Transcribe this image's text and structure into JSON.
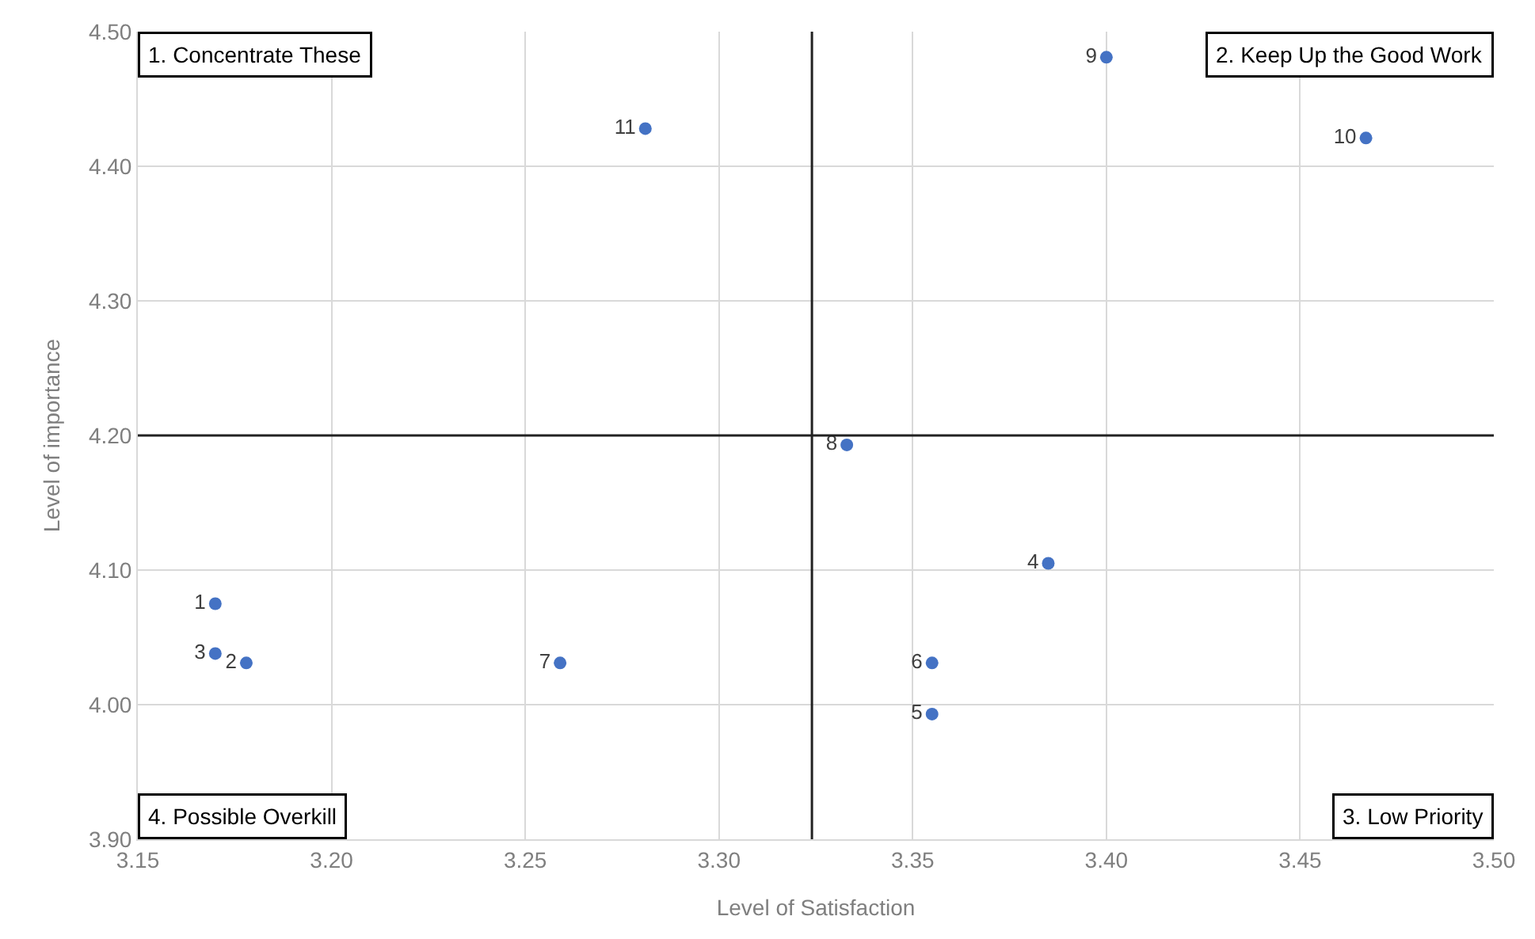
{
  "chart_data": {
    "type": "scatter",
    "xlabel": "Level of Satisfaction",
    "ylabel": "Level of importance",
    "xlim": [
      3.15,
      3.5
    ],
    "xticks": [
      {
        "value": 3.15,
        "label": "3.15"
      },
      {
        "value": 3.2,
        "label": "3.20"
      },
      {
        "value": 3.25,
        "label": "3.25"
      },
      {
        "value": 3.3,
        "label": "3.30"
      },
      {
        "value": 3.35,
        "label": "3.35"
      },
      {
        "value": 3.4,
        "label": "3.40"
      },
      {
        "value": 3.45,
        "label": "3.45"
      },
      {
        "value": 3.5,
        "label": "3.50"
      }
    ],
    "ylim": [
      3.9,
      4.5
    ],
    "yticks": [
      {
        "value": 3.9,
        "label": "3.90"
      },
      {
        "value": 4.0,
        "label": "4.00"
      },
      {
        "value": 4.1,
        "label": "4.10"
      },
      {
        "value": 4.2,
        "label": "4.20"
      },
      {
        "value": 4.3,
        "label": "4.30"
      },
      {
        "value": 4.4,
        "label": "4.40"
      },
      {
        "value": 4.5,
        "label": "4.50"
      }
    ],
    "grid": true,
    "legend": false,
    "marker": "circle",
    "series": [
      {
        "name": "1",
        "color": "#4472c4",
        "x": [
          3.17
        ],
        "values": [
          4.075
        ]
      },
      {
        "name": "2",
        "color": "#4472c4",
        "x": [
          3.178
        ],
        "values": [
          4.031
        ]
      },
      {
        "name": "3",
        "color": "#4472c4",
        "x": [
          3.17
        ],
        "values": [
          4.038
        ]
      },
      {
        "name": "4",
        "color": "#4472c4",
        "x": [
          3.385
        ],
        "values": [
          4.105
        ]
      },
      {
        "name": "5",
        "color": "#4472c4",
        "x": [
          3.355
        ],
        "values": [
          3.993
        ]
      },
      {
        "name": "6",
        "color": "#4472c4",
        "x": [
          3.355
        ],
        "values": [
          4.031
        ]
      },
      {
        "name": "7",
        "color": "#4472c4",
        "x": [
          3.259
        ],
        "values": [
          4.031
        ]
      },
      {
        "name": "8",
        "color": "#4472c4",
        "x": [
          3.333
        ],
        "values": [
          4.193
        ]
      },
      {
        "name": "9",
        "color": "#4472c4",
        "x": [
          3.4
        ],
        "values": [
          4.481
        ]
      },
      {
        "name": "10",
        "color": "#4472c4",
        "x": [
          3.467
        ],
        "values": [
          4.421
        ]
      },
      {
        "name": "11",
        "color": "#4472c4",
        "x": [
          3.281
        ],
        "values": [
          4.428
        ]
      }
    ],
    "ref_lines": [
      {
        "axis": "x",
        "value": 3.324,
        "color": "#222222"
      },
      {
        "axis": "y",
        "value": 4.2,
        "color": "#222222"
      }
    ],
    "annotations": [
      "1. Concentrate These",
      "2. Keep Up the Good Work",
      "3. Low Priority",
      "4. Possible Overkill"
    ]
  }
}
